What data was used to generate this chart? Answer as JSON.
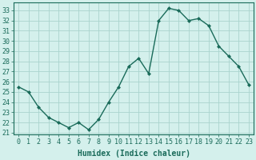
{
  "x": [
    0,
    1,
    2,
    3,
    4,
    5,
    6,
    7,
    8,
    9,
    10,
    11,
    12,
    13,
    14,
    15,
    16,
    17,
    18,
    19,
    20,
    21,
    22,
    23
  ],
  "y": [
    25.5,
    25.0,
    23.5,
    22.5,
    22.0,
    21.5,
    22.0,
    21.3,
    22.3,
    24.0,
    25.5,
    27.5,
    28.3,
    26.8,
    32.0,
    33.2,
    33.0,
    32.0,
    32.2,
    31.5,
    29.5,
    28.5,
    27.5,
    25.7
  ],
  "line_color": "#1a6b5a",
  "marker": "D",
  "marker_size": 2.0,
  "line_width": 1.0,
  "bg_color": "#d4f0ec",
  "grid_color": "#aad4ce",
  "xlabel": "Humidex (Indice chaleur)",
  "xlabel_fontsize": 7,
  "ylabel_ticks": [
    21,
    22,
    23,
    24,
    25,
    26,
    27,
    28,
    29,
    30,
    31,
    32,
    33
  ],
  "xlim": [
    -0.5,
    23.5
  ],
  "ylim": [
    20.8,
    33.8
  ],
  "xtick_labels": [
    "0",
    "1",
    "2",
    "3",
    "4",
    "5",
    "6",
    "7",
    "8",
    "9",
    "10",
    "11",
    "12",
    "13",
    "14",
    "15",
    "16",
    "17",
    "18",
    "19",
    "20",
    "21",
    "22",
    "23"
  ],
  "tick_fontsize": 6,
  "axis_color": "#1a6b5a"
}
